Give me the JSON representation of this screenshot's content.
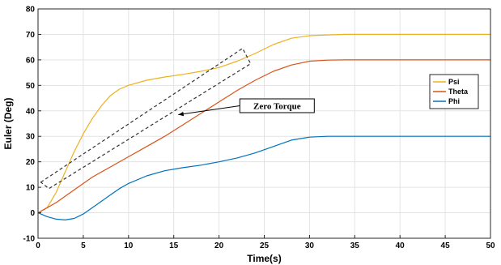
{
  "chart_data": {
    "type": "line",
    "xlabel": "Time(s)",
    "ylabel": "Euler (Deg)",
    "xlim": [
      0,
      50
    ],
    "ylim": [
      -10,
      80
    ],
    "xticks": [
      0,
      5,
      10,
      15,
      20,
      25,
      30,
      35,
      40,
      45,
      50
    ],
    "yticks": [
      -10,
      0,
      10,
      20,
      30,
      40,
      50,
      60,
      70,
      80
    ],
    "grid": true,
    "legend_position": "right",
    "series": [
      {
        "name": "Psi",
        "color": "#EDB120",
        "x": [
          0,
          1,
          2,
          3,
          4,
          5,
          6,
          7,
          8,
          9,
          10,
          12,
          14,
          16,
          18,
          20,
          22,
          24,
          26,
          28,
          30,
          32,
          34,
          36,
          40,
          45,
          50
        ],
        "y": [
          0,
          2,
          8,
          16,
          24,
          31,
          37,
          42,
          46,
          48.5,
          50,
          52,
          53.3,
          54.3,
          55.5,
          57,
          59.5,
          62.5,
          66,
          68.5,
          69.5,
          69.8,
          70,
          70,
          70,
          70,
          70
        ]
      },
      {
        "name": "Theta",
        "color": "#D95319",
        "x": [
          0,
          1,
          2,
          3,
          4,
          5,
          6,
          8,
          10,
          12,
          14,
          16,
          18,
          20,
          22,
          24,
          26,
          28,
          30,
          32,
          34,
          36,
          40,
          45,
          50
        ],
        "y": [
          0,
          2,
          4,
          6.5,
          9,
          11.5,
          14,
          18,
          22,
          26,
          30,
          34.5,
          39,
          43.5,
          48,
          52,
          55.5,
          58,
          59.5,
          59.9,
          60,
          60,
          60,
          60,
          60
        ]
      },
      {
        "name": "Phi",
        "color": "#0072BD",
        "x": [
          0,
          1,
          2,
          3,
          4,
          5,
          6,
          7,
          8,
          9,
          10,
          12,
          14,
          16,
          18,
          20,
          22,
          24,
          26,
          28,
          30,
          32,
          34,
          36,
          40,
          45,
          50
        ],
        "y": [
          0,
          -1.5,
          -2.5,
          -2.8,
          -2.2,
          -0.5,
          2,
          4.5,
          7,
          9.5,
          11.5,
          14.5,
          16.5,
          17.7,
          18.7,
          20,
          21.5,
          23.5,
          26,
          28.5,
          29.7,
          30,
          30,
          30,
          30,
          30,
          30
        ]
      }
    ],
    "annotation": {
      "text": "Zero Torque",
      "box_corners_data": [
        [
          0.3,
          12
        ],
        [
          22.6,
          64.5
        ],
        [
          23.5,
          58.5
        ],
        [
          1.2,
          9.5
        ]
      ],
      "arrow_from": [
        22.3,
        42
      ],
      "arrow_to": [
        15.5,
        38.5
      ]
    }
  }
}
